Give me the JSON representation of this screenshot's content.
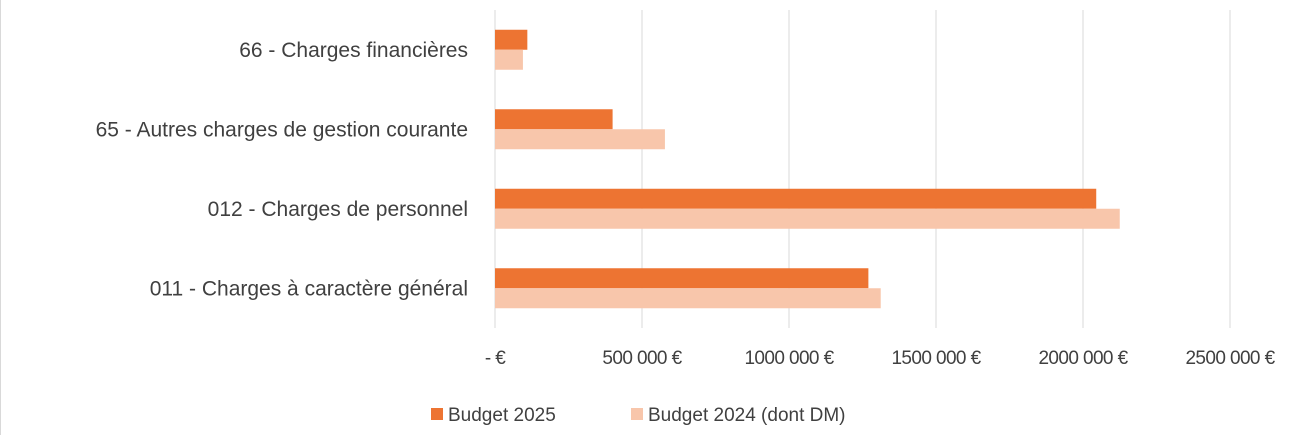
{
  "chart_data": {
    "type": "bar",
    "orientation": "horizontal",
    "categories": [
      "66 - Charges financières",
      "65 - Autres charges de gestion courante",
      "012 - Charges de personnel",
      "011 - Charges à caractère général"
    ],
    "series": [
      {
        "name": "Budget 2025",
        "color": "#ED7432",
        "values": [
          110000,
          400000,
          2045000,
          1270000
        ]
      },
      {
        "name": "Budget 2024 (dont DM)",
        "color": "#F8C6AB",
        "values": [
          95000,
          578000,
          2125000,
          1312000
        ]
      }
    ],
    "xlim": [
      0,
      2500000
    ],
    "x_ticks": [
      0,
      500000,
      1000000,
      1500000,
      2000000,
      2500000
    ],
    "x_tick_labels": [
      "-  €",
      "500 000 €",
      "1000 000 €",
      "1500 000 €",
      "2000 000 €",
      "2500 000 €"
    ],
    "title": "",
    "xlabel": "",
    "ylabel": "",
    "grid": true,
    "legend_position": "bottom"
  }
}
